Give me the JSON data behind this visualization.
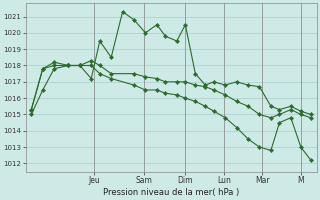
{
  "bg_color": "#ceeae6",
  "grid_color": "#aacccc",
  "line_color": "#2d6a2d",
  "marker_color": "#2d6a2d",
  "title": "Pression niveau de la mer( hPa )",
  "ylim": [
    1011.5,
    1021.8
  ],
  "yticks": [
    1012,
    1013,
    1014,
    1015,
    1016,
    1017,
    1018,
    1019,
    1020,
    1021
  ],
  "day_labels": [
    "Jeu",
    "Sam",
    "Dim",
    "Lun",
    "Mar",
    "M"
  ],
  "day_positions": [
    0.22,
    0.395,
    0.54,
    0.675,
    0.81,
    0.945
  ],
  "series1_x": [
    0.0,
    0.04,
    0.08,
    0.13,
    0.17,
    0.21,
    0.24,
    0.28,
    0.32,
    0.36,
    0.4,
    0.44,
    0.47,
    0.51,
    0.54,
    0.575,
    0.61,
    0.64,
    0.68,
    0.72,
    0.76,
    0.8,
    0.84,
    0.87,
    0.91,
    0.945,
    0.98
  ],
  "series1_y": [
    1015.0,
    1016.5,
    1017.8,
    1018.0,
    1018.0,
    1017.2,
    1019.5,
    1018.5,
    1021.3,
    1020.8,
    1020.0,
    1020.5,
    1019.8,
    1019.5,
    1020.5,
    1017.5,
    1016.8,
    1017.0,
    1016.8,
    1017.0,
    1016.8,
    1016.7,
    1015.5,
    1015.3,
    1015.5,
    1015.2,
    1015.0
  ],
  "series2_x": [
    0.0,
    0.04,
    0.08,
    0.13,
    0.17,
    0.21,
    0.24,
    0.28,
    0.36,
    0.4,
    0.44,
    0.47,
    0.51,
    0.54,
    0.575,
    0.61,
    0.64,
    0.68,
    0.72,
    0.76,
    0.8,
    0.84,
    0.87,
    0.91,
    0.945,
    0.98
  ],
  "series2_y": [
    1015.3,
    1017.8,
    1018.0,
    1018.0,
    1018.0,
    1018.3,
    1018.0,
    1017.5,
    1017.5,
    1017.3,
    1017.2,
    1017.0,
    1017.0,
    1017.0,
    1016.8,
    1016.7,
    1016.5,
    1016.2,
    1015.8,
    1015.5,
    1015.0,
    1014.8,
    1015.0,
    1015.3,
    1015.0,
    1014.8
  ],
  "series3_x": [
    0.0,
    0.04,
    0.08,
    0.13,
    0.17,
    0.21,
    0.24,
    0.28,
    0.36,
    0.4,
    0.44,
    0.47,
    0.51,
    0.54,
    0.575,
    0.61,
    0.64,
    0.68,
    0.72,
    0.76,
    0.8,
    0.84,
    0.87,
    0.91,
    0.945,
    0.98
  ],
  "series3_y": [
    1015.3,
    1017.8,
    1018.2,
    1018.0,
    1018.0,
    1018.0,
    1017.5,
    1017.2,
    1016.8,
    1016.5,
    1016.5,
    1016.3,
    1016.2,
    1016.0,
    1015.8,
    1015.5,
    1015.2,
    1014.8,
    1014.2,
    1013.5,
    1013.0,
    1012.8,
    1014.5,
    1014.8,
    1013.0,
    1012.2
  ]
}
